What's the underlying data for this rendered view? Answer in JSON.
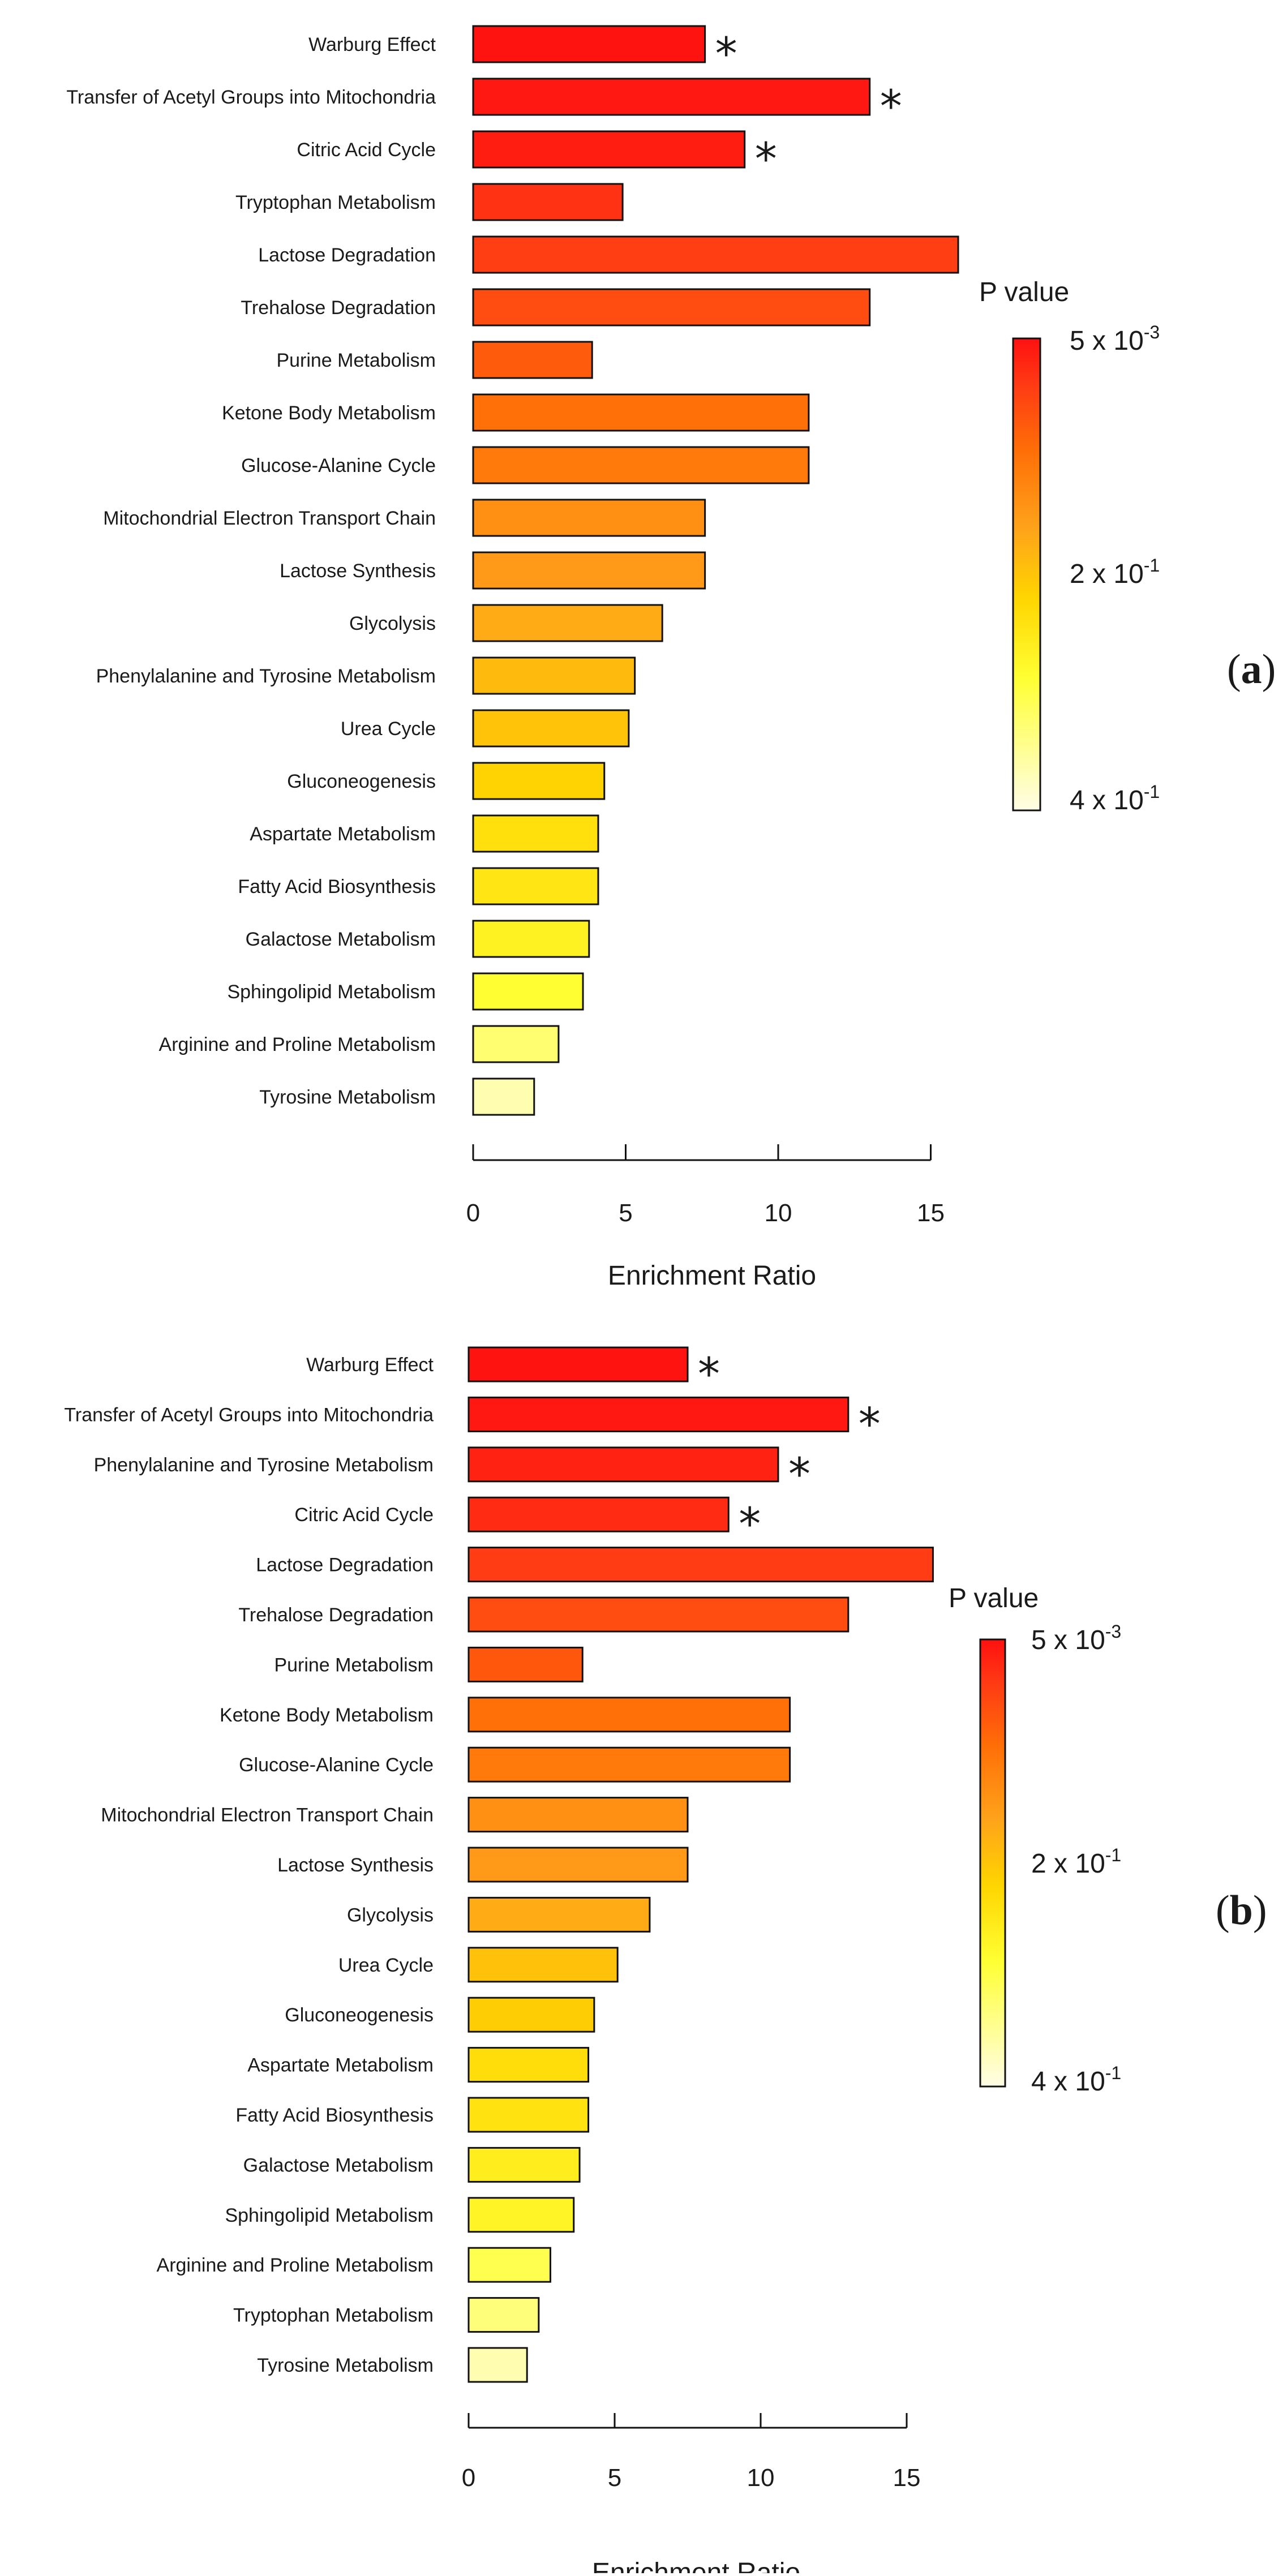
{
  "colors": {
    "scale": [
      "#fffde6",
      "#ffff33",
      "#ffd500",
      "#ffa21a",
      "#ff6f07",
      "#ff3b14",
      "#ff1010"
    ]
  },
  "chart_data": [
    {
      "panel": "a",
      "panel_label": {
        "open": "(",
        "letter": "a",
        "close": ")"
      },
      "type": "bar",
      "orientation": "horizontal",
      "xlabel": "Enrichment Ratio",
      "xlim": [
        0,
        16
      ],
      "xticks": [
        0,
        5,
        10,
        15
      ],
      "categories": [
        "Warburg Effect",
        "Transfer of Acetyl Groups into Mitochondria",
        "Citric Acid Cycle",
        "Tryptophan Metabolism",
        "Lactose Degradation",
        "Trehalose Degradation",
        "Purine Metabolism",
        "Ketone Body Metabolism",
        "Glucose-Alanine Cycle",
        "Mitochondrial Electron Transport Chain",
        "Lactose Synthesis",
        "Glycolysis",
        "Phenylalanine and Tyrosine Metabolism",
        "Urea Cycle",
        "Gluconeogenesis",
        "Aspartate Metabolism",
        "Fatty Acid Biosynthesis",
        "Galactose Metabolism",
        "Sphingolipid Metabolism",
        "Arginine and Proline Metabolism",
        "Tyrosine Metabolism"
      ],
      "values": [
        7.6,
        13.0,
        8.9,
        4.9,
        15.9,
        13.0,
        3.9,
        11.0,
        11.0,
        7.6,
        7.6,
        6.2,
        5.3,
        5.1,
        4.3,
        4.1,
        4.1,
        3.8,
        3.6,
        2.8,
        2.0
      ],
      "color_levels": [
        0.99,
        0.97,
        0.95,
        0.87,
        0.82,
        0.78,
        0.73,
        0.66,
        0.63,
        0.56,
        0.53,
        0.47,
        0.42,
        0.39,
        0.34,
        0.29,
        0.27,
        0.22,
        0.17,
        0.11,
        0.05
      ],
      "significant": [
        true,
        true,
        true,
        false,
        false,
        false,
        false,
        false,
        false,
        false,
        false,
        false,
        false,
        false,
        false,
        false,
        false,
        false,
        false,
        false,
        false
      ],
      "significance_marker": "*",
      "legend": {
        "title": "P value",
        "labels": [
          {
            "base": "5 x 10",
            "exp": "-3"
          },
          {
            "base": "2 x 10",
            "exp": "-1"
          },
          {
            "base": "4 x 10",
            "exp": "-1"
          }
        ]
      }
    },
    {
      "panel": "b",
      "panel_label": {
        "open": "(",
        "letter": "b",
        "close": ")"
      },
      "type": "bar",
      "orientation": "horizontal",
      "xlabel": "Enrichment Ratio",
      "xlim": [
        0,
        16
      ],
      "xticks": [
        0,
        5,
        10,
        15
      ],
      "categories": [
        "Warburg Effect",
        "Transfer of Acetyl Groups into Mitochondria",
        "Phenylalanine and Tyrosine Metabolism",
        "Citric Acid Cycle",
        "Lactose Degradation",
        "Trehalose Degradation",
        "Purine Metabolism",
        "Ketone Body Metabolism",
        "Glucose-Alanine Cycle",
        "Mitochondrial Electron Transport Chain",
        "Lactose Synthesis",
        "Glycolysis",
        "Urea Cycle",
        "Gluconeogenesis",
        "Aspartate Metabolism",
        "Fatty Acid Biosynthesis",
        "Galactose Metabolism",
        "Sphingolipid Metabolism",
        "Arginine and Proline Metabolism",
        "Tryptophan Metabolism",
        "Tyrosine Metabolism"
      ],
      "values": [
        7.5,
        13.0,
        10.6,
        8.9,
        15.9,
        13.0,
        3.9,
        11.0,
        11.0,
        7.5,
        7.5,
        6.2,
        5.1,
        4.3,
        4.1,
        4.1,
        3.8,
        3.6,
        2.8,
        2.4,
        2.0
      ],
      "color_levels": [
        0.99,
        0.97,
        0.93,
        0.89,
        0.83,
        0.78,
        0.74,
        0.66,
        0.63,
        0.56,
        0.53,
        0.47,
        0.4,
        0.36,
        0.3,
        0.28,
        0.24,
        0.21,
        0.14,
        0.1,
        0.05
      ],
      "significant": [
        true,
        true,
        true,
        true,
        false,
        false,
        false,
        false,
        false,
        false,
        false,
        false,
        false,
        false,
        false,
        false,
        false,
        false,
        false,
        false,
        false
      ],
      "significance_marker": "*",
      "legend": {
        "title": "P value",
        "labels": [
          {
            "base": "5 x 10",
            "exp": "-3"
          },
          {
            "base": "2 x 10",
            "exp": "-1"
          },
          {
            "base": "4 x 10",
            "exp": "-1"
          }
        ]
      }
    }
  ]
}
